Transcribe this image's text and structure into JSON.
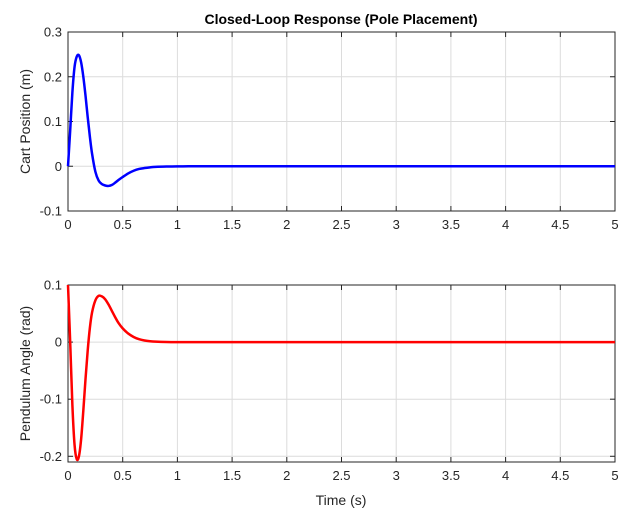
{
  "chart_data": [
    {
      "type": "line",
      "title": "Closed-Loop Response (Pole Placement)",
      "xlabel": "",
      "ylabel": "Cart Position (m)",
      "xlim": [
        0,
        5
      ],
      "ylim": [
        -0.1,
        0.3
      ],
      "xticks": [
        "0",
        "0.5",
        "1",
        "1.5",
        "2",
        "2.5",
        "3",
        "3.5",
        "4",
        "4.5",
        "5"
      ],
      "yticks": [
        "-0.1",
        "0",
        "0.1",
        "0.2",
        "0.3"
      ],
      "grid": true,
      "series": [
        {
          "color": "#0000ff",
          "x": [
            0,
            0.02,
            0.04,
            0.06,
            0.08,
            0.1,
            0.12,
            0.14,
            0.16,
            0.18,
            0.2,
            0.22,
            0.25,
            0.28,
            0.31,
            0.34,
            0.37,
            0.4,
            0.43,
            0.46,
            0.5,
            0.55,
            0.6,
            0.65,
            0.7,
            0.75,
            0.8,
            0.9,
            1.0,
            1.1,
            1.2,
            1.4,
            1.6,
            2.0,
            3.0,
            4.0,
            5.0
          ],
          "y": [
            0,
            0.08,
            0.165,
            0.222,
            0.245,
            0.248,
            0.232,
            0.2,
            0.158,
            0.11,
            0.066,
            0.028,
            -0.012,
            -0.032,
            -0.04,
            -0.043,
            -0.044,
            -0.042,
            -0.037,
            -0.031,
            -0.024,
            -0.016,
            -0.01,
            -0.006,
            -0.004,
            -0.0025,
            -0.0015,
            -0.0007,
            -0.0003,
            -0.0001,
            0,
            0,
            0,
            0,
            0,
            0,
            0
          ]
        }
      ]
    },
    {
      "type": "line",
      "title": "",
      "xlabel": "Time (s)",
      "ylabel": "Pendulum Angle (rad)",
      "xlim": [
        0,
        5
      ],
      "ylim": [
        -0.21,
        0.1
      ],
      "xticks": [
        "0",
        "0.5",
        "1",
        "1.5",
        "2",
        "2.5",
        "3",
        "3.5",
        "4",
        "4.5",
        "5"
      ],
      "yticks": [
        "-0.2",
        "-0.1",
        "0",
        "0.1"
      ],
      "grid": true,
      "series": [
        {
          "color": "#ff0000",
          "x": [
            0,
            0.02,
            0.04,
            0.06,
            0.08,
            0.1,
            0.12,
            0.14,
            0.16,
            0.18,
            0.2,
            0.22,
            0.25,
            0.28,
            0.31,
            0.34,
            0.37,
            0.4,
            0.43,
            0.46,
            0.5,
            0.55,
            0.6,
            0.65,
            0.7,
            0.75,
            0.8,
            0.9,
            1.0,
            1.1,
            1.2,
            1.4,
            1.6,
            2.0,
            3.0,
            4.0,
            5.0
          ],
          "y": [
            0.1,
            0.0,
            -0.11,
            -0.18,
            -0.205,
            -0.2,
            -0.17,
            -0.12,
            -0.065,
            -0.015,
            0.025,
            0.052,
            0.073,
            0.081,
            0.08,
            0.075,
            0.066,
            0.055,
            0.044,
            0.034,
            0.024,
            0.015,
            0.009,
            0.005,
            0.0028,
            0.0015,
            0.0008,
            0.0002,
            0,
            0,
            0,
            0,
            0,
            0,
            0,
            0,
            0
          ]
        }
      ]
    }
  ]
}
